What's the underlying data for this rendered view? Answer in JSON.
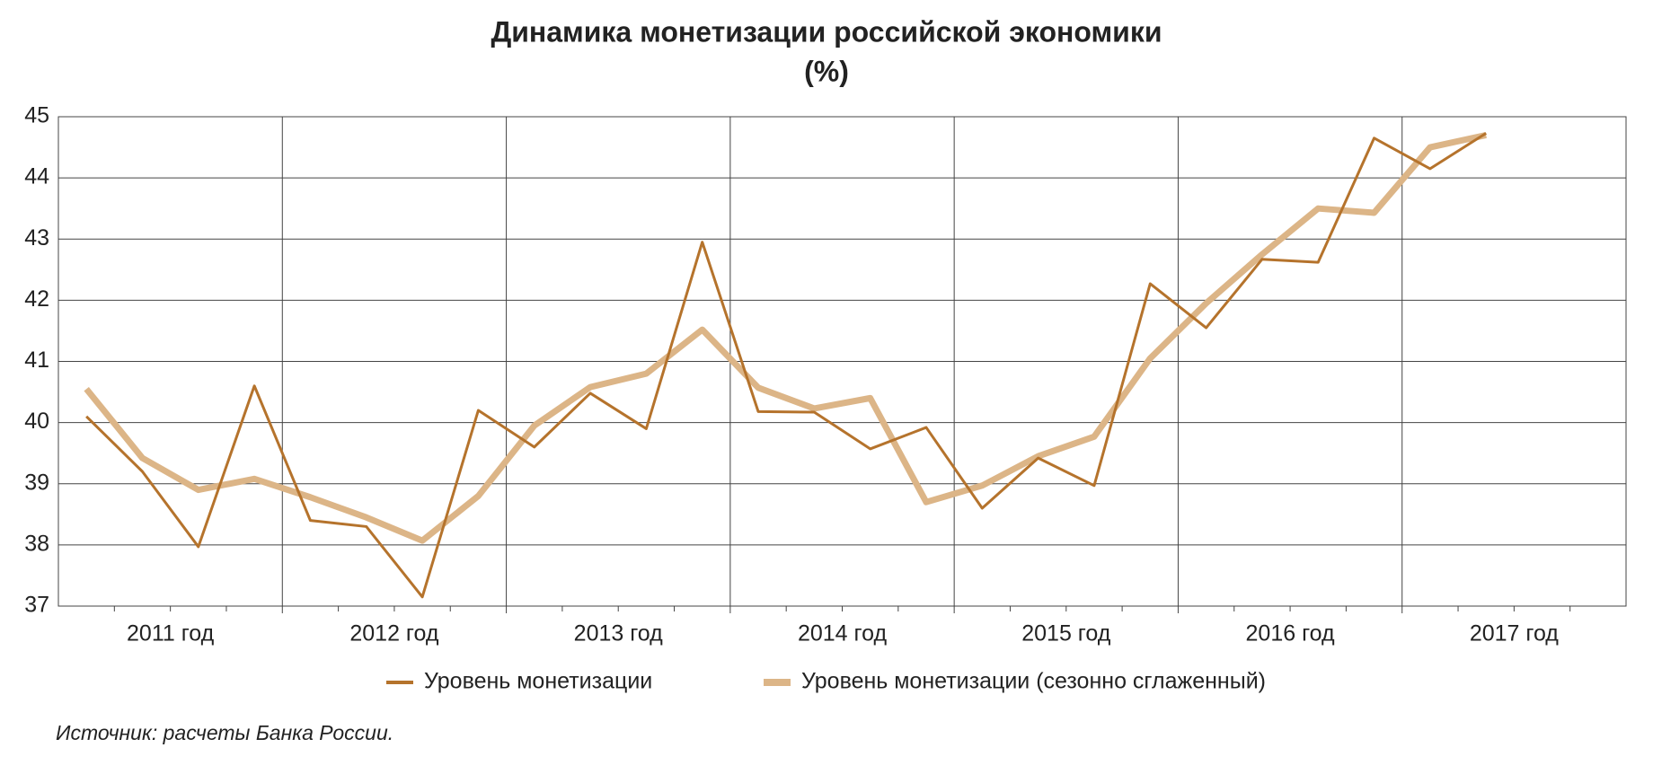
{
  "chart_data": {
    "type": "line",
    "title": "Динамика монетизации российской экономики",
    "subtitle": "(%)",
    "categories": [
      null,
      null,
      null,
      null,
      null,
      null,
      null,
      null,
      null,
      null,
      null,
      null,
      null,
      null,
      null,
      null,
      null,
      null,
      null,
      null,
      null,
      null,
      null,
      null,
      null,
      null
    ],
    "year_labels": [
      "2011 год",
      "2012 год",
      "2013 год",
      "2014 год",
      "2015 год",
      "2016 год",
      "2017 год"
    ],
    "series": [
      {
        "name": "Уровень монетизации",
        "color": "#b5732c",
        "values": [
          40.1,
          39.2,
          37.97,
          40.6,
          38.4,
          38.3,
          37.15,
          40.2,
          39.6,
          40.48,
          39.9,
          42.95,
          40.18,
          40.17,
          39.57,
          39.92,
          38.6,
          39.42,
          38.97,
          42.27,
          41.55,
          42.67,
          42.62,
          44.65,
          44.15,
          44.73
        ]
      },
      {
        "name": "Уровень монетизации (сезонно сглаженный)",
        "color": "#dcb587",
        "values": [
          40.55,
          39.42,
          38.9,
          39.08,
          38.78,
          38.45,
          38.07,
          38.8,
          39.95,
          40.58,
          40.8,
          41.52,
          40.57,
          40.23,
          40.4,
          38.7,
          38.97,
          39.45,
          39.77,
          41.05,
          41.95,
          42.75,
          43.5,
          43.43,
          44.5,
          44.7
        ]
      }
    ],
    "ylim": [
      37,
      45
    ],
    "yticks": [
      37,
      38,
      39,
      40,
      41,
      42,
      43,
      44,
      45
    ],
    "grid": true,
    "source": "Источник: расчеты Банка России."
  }
}
